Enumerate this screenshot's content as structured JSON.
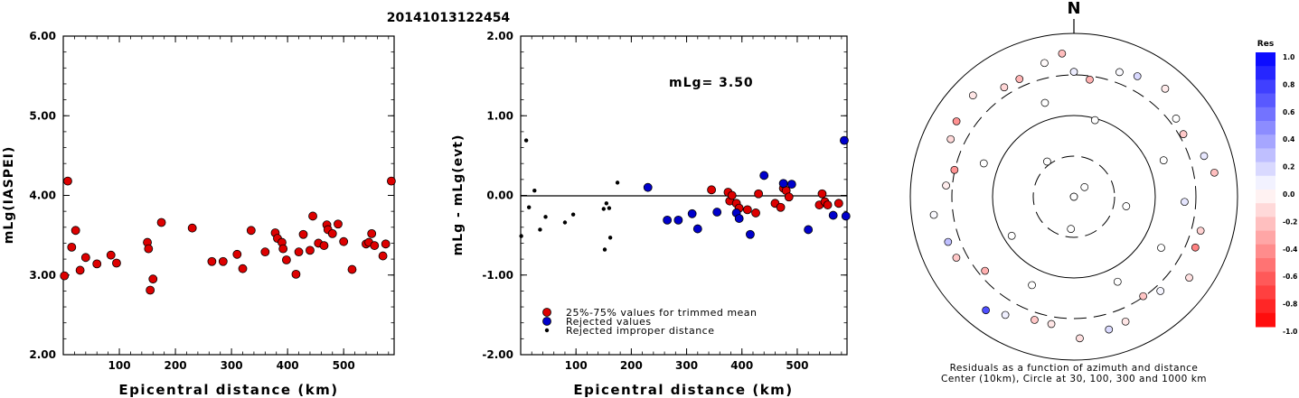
{
  "title": "20141013122454",
  "left_plot": {
    "ylabel": "mLg(IASPEI)",
    "xlabel": "Epicentral distance (km)",
    "yticks": [
      "2.00",
      "3.00",
      "4.00",
      "5.00",
      "6.00"
    ],
    "xticks": [
      "100",
      "200",
      "300",
      "400",
      "500"
    ]
  },
  "mid_plot": {
    "ylabel": "mLg - mLg(evt)",
    "xlabel": "Epicentral distance (km)",
    "yticks": [
      "-2.00",
      "-1.00",
      "0.00",
      "1.00",
      "2.00"
    ],
    "xticks": [
      "100",
      "200",
      "300",
      "400",
      "500"
    ],
    "annotation": "mLg= 3.50",
    "legend": [
      "25%-75% values for trimmed mean",
      "Rejected values",
      "Rejected improper distance"
    ]
  },
  "polar_plot": {
    "north_label": "N",
    "caption_line1": "Residuals as a function of azimuth and distance",
    "caption_line2": "Center (10km), Circle at 30, 100, 300 and 1000 km"
  },
  "colorbar": {
    "title": "Res",
    "ticks": [
      "1.0",
      "0.8",
      "0.6",
      "0.4",
      "0.2",
      "0.0",
      "-0.2",
      "-0.4",
      "-0.6",
      "-0.8",
      "-1.0"
    ]
  },
  "colors": {
    "red": "#dd0000",
    "blue": "#0000cc",
    "black": "#000000"
  },
  "chart_data": [
    {
      "type": "scatter",
      "xlabel": "Epicentral distance (km)",
      "ylabel": "mLg(IASPEI)",
      "xlim": [
        0,
        590
      ],
      "ylim": [
        2,
        6
      ],
      "series": [
        {
          "x": [
            2,
            8,
            15,
            22,
            30,
            40,
            60,
            85,
            95,
            150,
            152,
            155,
            160,
            175,
            230,
            265,
            285,
            310,
            320,
            335,
            360,
            378,
            382,
            390,
            392,
            398,
            415,
            420,
            428,
            440,
            445,
            455,
            465,
            470,
            472,
            480,
            490,
            500,
            515,
            540,
            545,
            550,
            555,
            570,
            575,
            585
          ],
          "y": [
            2.99,
            4.18,
            3.35,
            3.56,
            3.06,
            3.22,
            3.14,
            3.25,
            3.15,
            3.41,
            3.33,
            2.81,
            2.95,
            3.66,
            3.59,
            3.17,
            3.17,
            3.26,
            3.08,
            3.56,
            3.29,
            3.53,
            3.46,
            3.41,
            3.33,
            3.19,
            3.01,
            3.29,
            3.51,
            3.31,
            3.74,
            3.4,
            3.37,
            3.63,
            3.57,
            3.52,
            3.64,
            3.42,
            3.07,
            3.39,
            3.41,
            3.52,
            3.37,
            3.24,
            3.39,
            4.18
          ]
        }
      ]
    },
    {
      "type": "scatter",
      "xlabel": "Epicentral distance (km)",
      "ylabel": "mLg - mLg(evt)",
      "xlim": [
        0,
        590
      ],
      "ylim": [
        -2,
        2
      ],
      "annotation": "mLg= 3.50",
      "series": [
        {
          "name": "25%-75% values for trimmed mean",
          "x": [
            345,
            375,
            378,
            382,
            390,
            395,
            410,
            425,
            430,
            460,
            470,
            475,
            480,
            485,
            540,
            545,
            550,
            555,
            575
          ],
          "y": [
            0.07,
            0.04,
            -0.07,
            0.0,
            -0.1,
            -0.16,
            -0.18,
            -0.22,
            0.02,
            -0.1,
            -0.15,
            0.09,
            0.06,
            -0.02,
            -0.12,
            0.02,
            -0.08,
            -0.12,
            -0.1
          ]
        },
        {
          "name": "Rejected values",
          "x": [
            230,
            265,
            285,
            310,
            320,
            355,
            390,
            395,
            415,
            440,
            475,
            490,
            520,
            565,
            585,
            588
          ],
          "y": [
            0.1,
            -0.31,
            -0.31,
            -0.23,
            -0.42,
            -0.21,
            -0.22,
            -0.29,
            -0.49,
            0.25,
            0.15,
            0.14,
            -0.43,
            -0.25,
            0.69,
            -0.26
          ]
        },
        {
          "name": "Rejected improper distance",
          "x": [
            1,
            10,
            15,
            25,
            35,
            45,
            80,
            95,
            150,
            152,
            155,
            160,
            162,
            175
          ],
          "y": [
            -0.51,
            0.69,
            -0.15,
            0.06,
            -0.43,
            -0.27,
            -0.34,
            -0.24,
            -0.17,
            -0.68,
            -0.1,
            -0.16,
            -0.53,
            0.16
          ]
        }
      ]
    }
  ]
}
